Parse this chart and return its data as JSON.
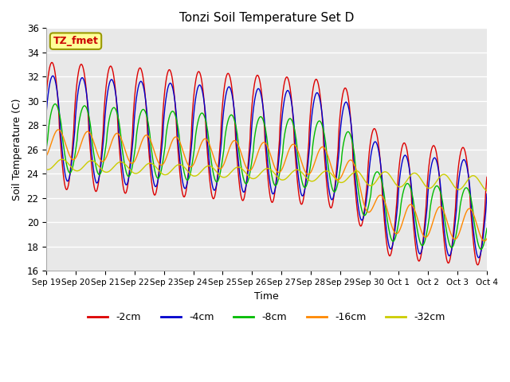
{
  "title": "Tonzi Soil Temperature Set D",
  "xlabel": "Time",
  "ylabel": "Soil Temperature (C)",
  "ylim": [
    16,
    36
  ],
  "label_text": "TZ_fmet",
  "bg_color": "#e8e8e8",
  "fig_color": "#ffffff",
  "series": [
    {
      "label": "-2cm",
      "color": "#dd0000"
    },
    {
      "label": "-4cm",
      "color": "#0000cc"
    },
    {
      "label": "-8cm",
      "color": "#00bb00"
    },
    {
      "label": "-16cm",
      "color": "#ff8800"
    },
    {
      "label": "-32cm",
      "color": "#cccc00"
    }
  ],
  "xtick_labels": [
    "Sep 19",
    "Sep 20",
    "Sep 21",
    "Sep 22",
    "Sep 23",
    "Sep 24",
    "Sep 25",
    "Sep 26",
    "Sep 27",
    "Sep 28",
    "Sep 29",
    "Sep 30",
    "Oct 1",
    "Oct 2",
    "Oct 3",
    "Oct 4"
  ],
  "ytick_values": [
    16,
    18,
    20,
    22,
    24,
    26,
    28,
    30,
    32,
    34,
    36
  ]
}
